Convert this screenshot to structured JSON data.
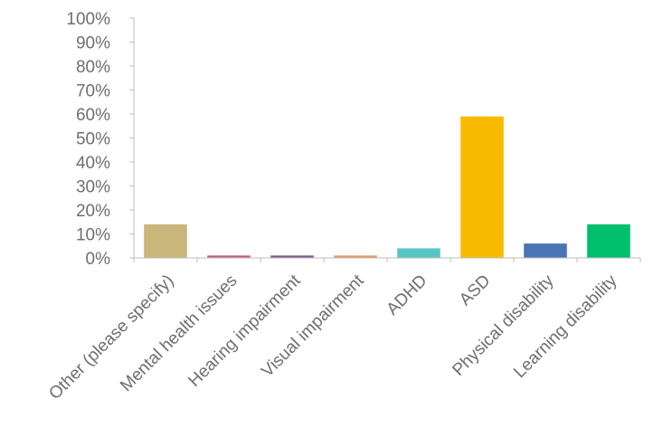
{
  "chart_data": {
    "type": "bar",
    "title": "",
    "xlabel": "",
    "ylabel": "",
    "ylim": [
      0,
      100
    ],
    "yticks": [
      "0%",
      "10%",
      "20%",
      "30%",
      "40%",
      "50%",
      "60%",
      "70%",
      "80%",
      "90%",
      "100%"
    ],
    "categories": [
      "Other (please specify)",
      "Mental health issues",
      "Hearing impairment",
      "Visual impairment",
      "ADHD",
      "ASD",
      "Physical disability",
      "Learning disability"
    ],
    "values": [
      14,
      1,
      1,
      1,
      4,
      59,
      6,
      14
    ],
    "colors": [
      "#c8b67a",
      "#c65b8a",
      "#7b5a8c",
      "#e8956a",
      "#5ac4c4",
      "#f9bb00",
      "#4a74b5",
      "#00c070"
    ],
    "grid": false,
    "legend": "none"
  }
}
